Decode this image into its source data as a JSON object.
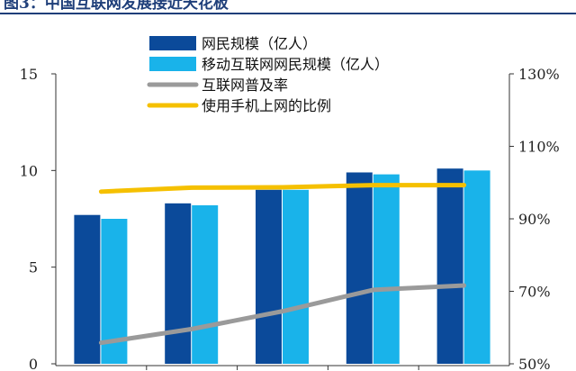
{
  "title": "图3：中国互联网发展接近天花板",
  "chart_data": {
    "type": "bar",
    "categories": [
      "",
      "",
      "",
      "",
      ""
    ],
    "series": [
      {
        "name": "网民规模（亿人）",
        "type": "bar",
        "axis": "left",
        "color": "#0b4a9a",
        "values": [
          7.7,
          8.3,
          9.0,
          9.9,
          10.1
        ]
      },
      {
        "name": "移动互联网网民规模（亿人）",
        "type": "bar",
        "axis": "left",
        "color": "#19b3ea",
        "values": [
          7.5,
          8.2,
          9.0,
          9.8,
          10.0
        ]
      },
      {
        "name": "互联网普及率",
        "type": "line",
        "axis": "right",
        "color": "#9a9a9a",
        "values": [
          55.8,
          59.6,
          64.5,
          70.4,
          71.6
        ]
      },
      {
        "name": "使用手机上网的比例",
        "type": "line",
        "axis": "right",
        "color": "#f5c000",
        "values": [
          97.5,
          98.6,
          98.7,
          99.3,
          99.3
        ]
      }
    ],
    "y_left": {
      "min": 0,
      "max": 15,
      "ticks": [
        "0",
        "5",
        "10",
        "15"
      ]
    },
    "y_right": {
      "min": 50,
      "max": 130,
      "ticks": [
        "50%",
        "70%",
        "90%",
        "110%",
        "130%"
      ]
    },
    "grid": false,
    "legend_position": "top"
  }
}
